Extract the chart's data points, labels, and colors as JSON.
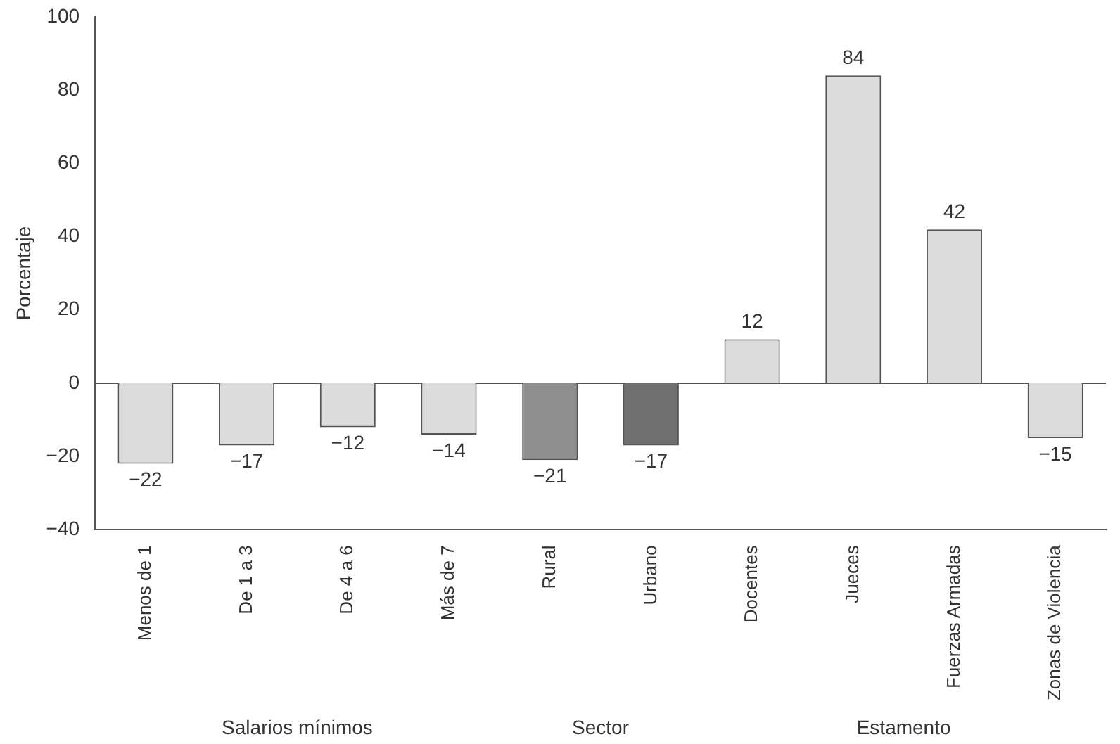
{
  "chart_data": {
    "type": "bar",
    "ylabel": "Porcentaje",
    "categories": [
      "Menos de 1",
      "De 1 a 3",
      "De 4 a 6",
      "Más de 7",
      "Rural",
      "Urbano",
      "Docentes",
      "Jueces",
      "Fuerzas Armadas",
      "Zonas de Violencia"
    ],
    "values": [
      -22,
      -17,
      -12,
      -14,
      -21,
      -17,
      12,
      84,
      42,
      -15
    ],
    "colors": [
      "#dcdcdc",
      "#dcdcdc",
      "#dcdcdc",
      "#dcdcdc",
      "#8f8f8f",
      "#6f6f6f",
      "#dcdcdc",
      "#dcdcdc",
      "#dcdcdc",
      "#dcdcdc"
    ],
    "ylim": [
      -40,
      100
    ],
    "yticks": [
      -40,
      -20,
      0,
      20,
      40,
      60,
      80,
      100
    ],
    "grid": false,
    "legend": false,
    "data_labels": true,
    "ref_lines": [
      {
        "axis": "y",
        "value": 0
      }
    ],
    "annotations": [
      "Salarios mínimos",
      "Sector",
      "Estamento"
    ]
  }
}
